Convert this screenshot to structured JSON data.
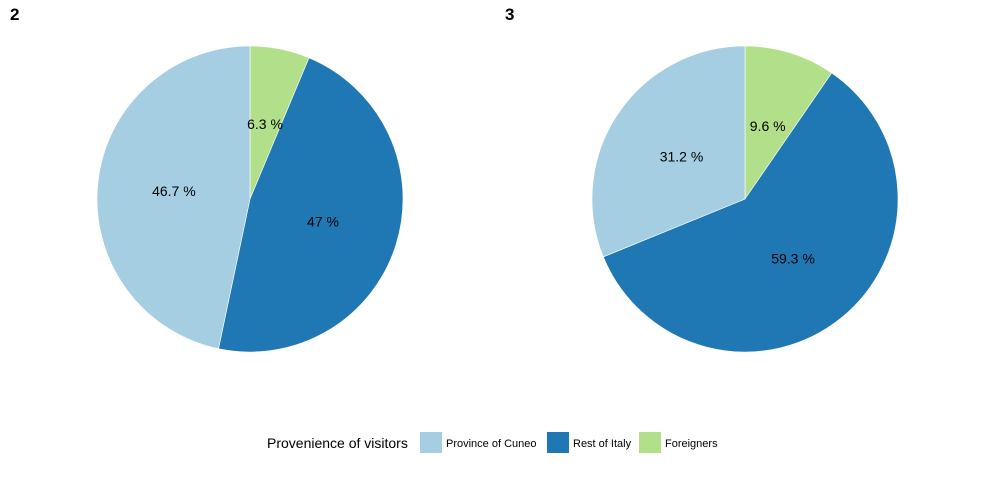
{
  "chart_data": [
    {
      "type": "pie",
      "panel_label": "2",
      "categories": [
        "Province of Cuneo",
        "Rest of Italy",
        "Foreigners"
      ],
      "values": [
        46.7,
        47,
        6.3
      ],
      "slice_labels": [
        "46.7 %",
        "47 %",
        "6.3 %"
      ]
    },
    {
      "type": "pie",
      "panel_label": "3",
      "categories": [
        "Province of Cuneo",
        "Rest of Italy",
        "Foreigners"
      ],
      "values": [
        31.2,
        59.3,
        9.6
      ],
      "slice_labels": [
        "31.2 %",
        "59.3 %",
        "9.6 %"
      ]
    }
  ],
  "legend": {
    "title": "Provenience of visitors",
    "position": "bottom",
    "items": [
      {
        "label": "Province of Cuneo",
        "color": "#a6cee3"
      },
      {
        "label": "Rest of Italy",
        "color": "#1f78b4"
      },
      {
        "label": "Foreigners",
        "color": "#b2df8a"
      }
    ]
  }
}
